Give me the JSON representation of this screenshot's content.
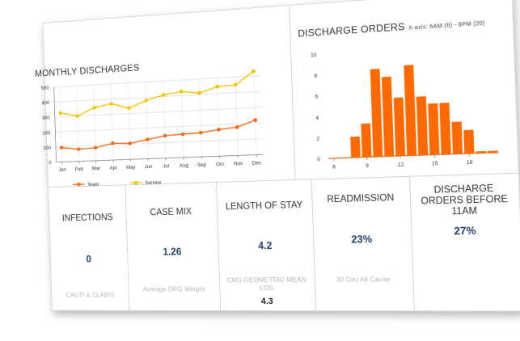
{
  "monthly": {
    "title": "MONTHLY DISCHARGES",
    "chart_data": {
      "type": "line",
      "categories": [
        "Jan",
        "Feb",
        "Mar",
        "Apr",
        "May",
        "Jun",
        "Jul",
        "Aug",
        "Sep",
        "Oct",
        "Nov",
        "Dec"
      ],
      "series": [
        {
          "name": "Team",
          "color": "#f26a1b",
          "values": [
            95,
            80,
            85,
            110,
            105,
            125,
            145,
            150,
            155,
            170,
            180,
            220
          ]
        },
        {
          "name": "Service",
          "color": "#f5c400",
          "values": [
            325,
            300,
            350,
            370,
            335,
            380,
            410,
            425,
            410,
            445,
            450,
            530
          ]
        }
      ],
      "ylim": [
        0,
        500
      ],
      "yticks": [
        0,
        100,
        200,
        300,
        400,
        500
      ],
      "grid": true,
      "legend": "bottom"
    }
  },
  "orders": {
    "title": "DISCHARGE ORDERS",
    "subtitle": "X-axis: 6AM (6) - 8PM (20)",
    "chart_data": {
      "type": "bar",
      "x": [
        6,
        7,
        8,
        9,
        10,
        11,
        12,
        13,
        14,
        15,
        16,
        17,
        18,
        19,
        20
      ],
      "values": [
        0,
        0,
        2,
        3.2,
        8.3,
        7.5,
        5.5,
        8.5,
        5.5,
        4.8,
        4.8,
        3,
        2.2,
        0.2,
        0.2
      ],
      "ylim": [
        0,
        10
      ],
      "yticks": [
        0,
        2,
        4,
        6,
        8,
        10
      ],
      "xticks": [
        6,
        9,
        12,
        15,
        18
      ],
      "color": "#ff6a00"
    }
  },
  "kpis": [
    {
      "title": "INFECTIONS",
      "value": "0",
      "sub": "CAUTI & CLABSI"
    },
    {
      "title": "CASE MIX",
      "value": "1.26",
      "sub": "Average DRG Weight"
    },
    {
      "title": "LENGTH OF STAY",
      "value": "4.2",
      "sub": "CMS GEOMETRIC MEAN LOS",
      "extra": "4.3"
    },
    {
      "title": "READMISSION",
      "value": "23%",
      "sub": "30 Day All Cause"
    },
    {
      "title": "DISCHARGE ORDERS BEFORE 11AM",
      "value": "27%"
    }
  ]
}
